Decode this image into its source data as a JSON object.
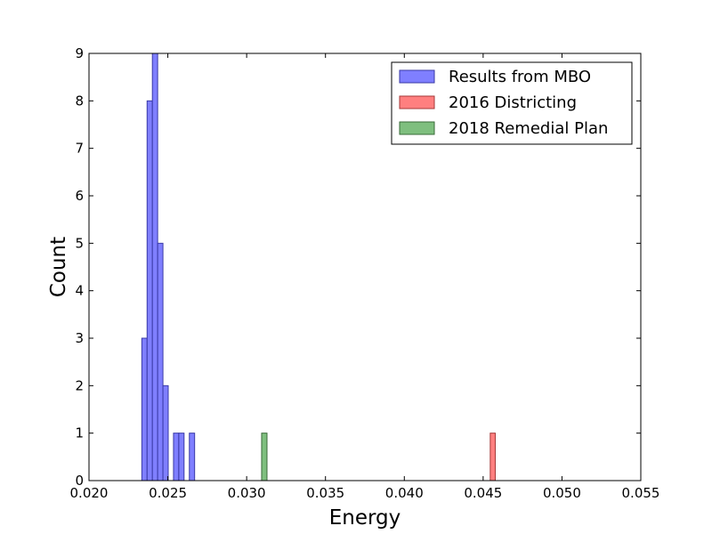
{
  "chart_data": {
    "type": "bar",
    "xlabel": "Energy",
    "ylabel": "Count",
    "xlim": [
      0.02,
      0.055
    ],
    "ylim": [
      0,
      9
    ],
    "x_ticks": [
      "0.020",
      "0.025",
      "0.030",
      "0.035",
      "0.040",
      "0.045",
      "0.050",
      "0.055"
    ],
    "y_ticks": [
      "0",
      "1",
      "2",
      "3",
      "4",
      "5",
      "6",
      "7",
      "8",
      "9"
    ],
    "grid": false,
    "legend_position": "top-right",
    "series": [
      {
        "name": "Results from MBO",
        "color": "#7f7fff",
        "edge_color": "#3a3aa6",
        "bin_width": 0.000335,
        "bins": [
          {
            "x0": 0.02335,
            "count": 3
          },
          {
            "x0": 0.023685,
            "count": 8
          },
          {
            "x0": 0.02402,
            "count": 9
          },
          {
            "x0": 0.024355,
            "count": 5
          },
          {
            "x0": 0.02469,
            "count": 2
          },
          {
            "x0": 0.025025,
            "count": 0
          },
          {
            "x0": 0.02536,
            "count": 1
          },
          {
            "x0": 0.025695,
            "count": 1
          },
          {
            "x0": 0.02603,
            "count": 0
          },
          {
            "x0": 0.026365,
            "count": 1
          }
        ]
      },
      {
        "name": "2016 Districting",
        "color": "#ff7f7f",
        "edge_color": "#a63a3a",
        "bin_width": 0.00032,
        "bins": [
          {
            "x0": 0.04545,
            "count": 1
          }
        ]
      },
      {
        "name": "2018 Remedial Plan",
        "color": "#7fbf7f",
        "edge_color": "#3a6b3a",
        "bin_width": 0.00034,
        "bins": [
          {
            "x0": 0.03095,
            "count": 1
          }
        ]
      }
    ]
  }
}
